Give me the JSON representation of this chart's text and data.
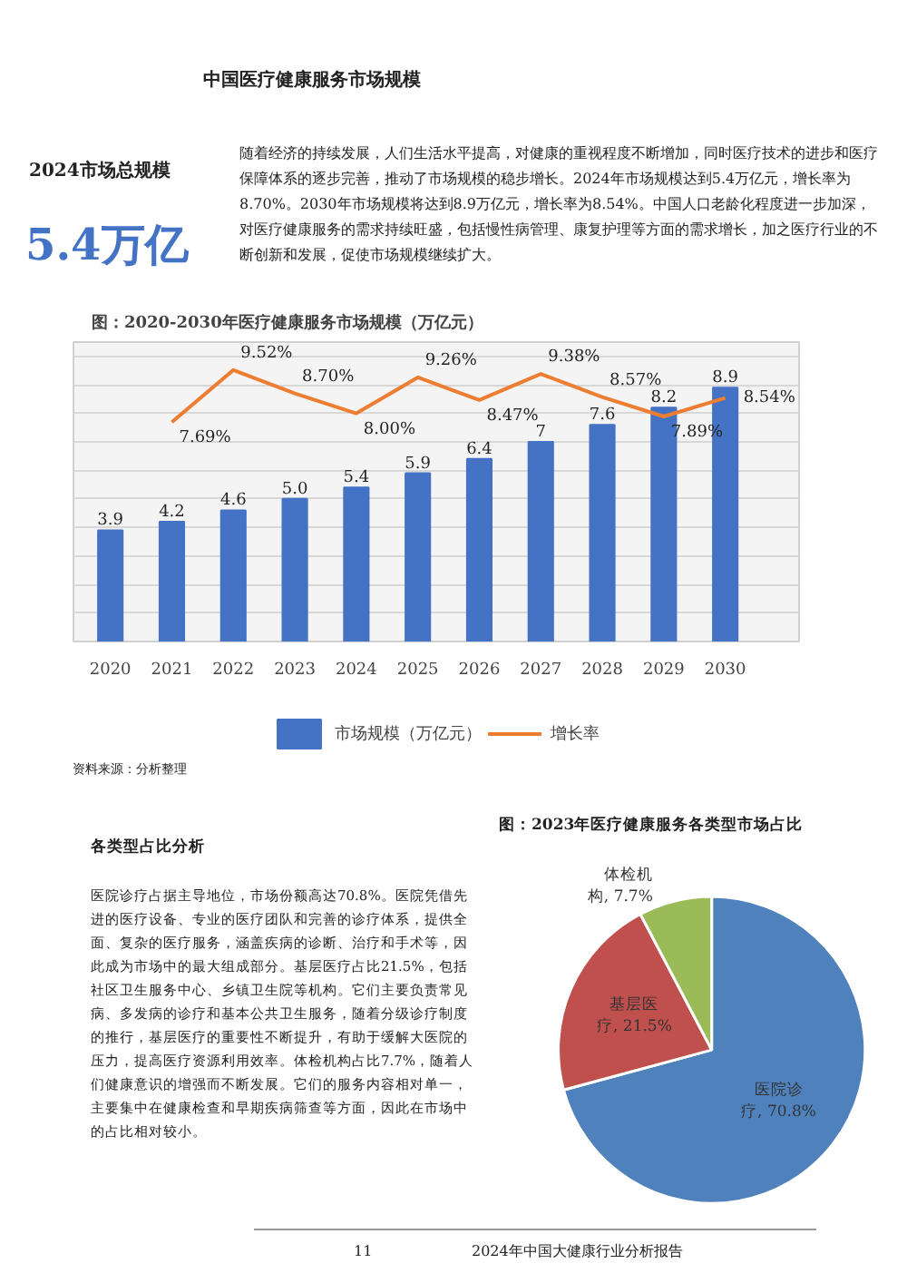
{
  "chart_data": [
    {
      "type": "other",
      "title": "中国医疗健康服务市场规模",
      "annotations": [
        "2024市场总规模",
        "5.4万亿",
        "随着经济的持续发展，人们生活水平提高，对健康的重视程度不断增加，同时医疗技术的进步和医疗保障体系的逐步完善，推动了市场规模的稳步增长。2024年市场规模达到5.4万亿元，增长率为8.70%。2030年市场规模将达到8.9万亿元，增长率为8.54%。中国人口老龄化程度进一步加深，对医疗健康服务的需求持续旺盛，包括慢性病管理、康复护理等方面的需求增长，加之医疗行业的不断创新和发展，促使市场规模继续扩大。"
      ]
    },
    {
      "type": "bar",
      "title": "图：2020-2030年医疗健康服务市场规模（万亿元）",
      "categories": [
        "2020",
        "2021",
        "2022",
        "2023",
        "2024",
        "2025",
        "2026",
        "2027",
        "2028",
        "2029",
        "2030"
      ],
      "series": [
        {
          "name": "市场规模（万亿元）",
          "type": "bar",
          "color": "#4472c4",
          "values": [
            3.9,
            4.2,
            4.6,
            5.0,
            5.4,
            5.9,
            6.4,
            7,
            7.6,
            8.2,
            8.9
          ],
          "value_labels": [
            "3.9",
            "4.2",
            "4.6",
            "5.0",
            "5.4",
            "5.9",
            "6.4",
            "7",
            "7.6",
            "8.2",
            "8.9"
          ]
        },
        {
          "name": "增长率",
          "type": "line",
          "color": "#ed7d31",
          "values": [
            null,
            7.69,
            9.52,
            8.7,
            8.0,
            9.26,
            8.47,
            9.38,
            8.57,
            7.89,
            8.54
          ],
          "value_labels": [
            null,
            "7.69%",
            "9.52%",
            "8.70%",
            "8.00%",
            "9.26%",
            "8.47%",
            "9.38%",
            "8.57%",
            "7.89%",
            "8.54%"
          ]
        }
      ],
      "ylim": [
        0,
        10.5
      ],
      "yticks": [
        {
          "value": 0,
          "label": null
        },
        {
          "value": 1,
          "label": null
        },
        {
          "value": 2,
          "label": null
        },
        {
          "value": 3,
          "label": null
        },
        {
          "value": 4,
          "label": null
        },
        {
          "value": 5,
          "label": null
        },
        {
          "value": 6,
          "label": null
        },
        {
          "value": 7,
          "label": null
        },
        {
          "value": 8,
          "label": null
        },
        {
          "value": 9,
          "label": null
        },
        {
          "value": 10,
          "label": null
        }
      ],
      "tick_labels": "x",
      "grid": "y",
      "legend": "bottom",
      "marker": "none",
      "line_style": "solid",
      "annotations": [
        "资料来源：分析整理"
      ]
    },
    {
      "type": "pie",
      "title": "图：2023年医疗健康服务各类型市场占比",
      "categories": [
        "医院诊疗",
        "基层医疗",
        "体检机构"
      ],
      "values": [
        70.8,
        21.5,
        7.7
      ],
      "colors": [
        "#4f81bd",
        "#c0504d",
        "#9bbb59"
      ],
      "value_labels": [
        "70.8%",
        "21.5%",
        "7.7%"
      ],
      "annotations": [
        "各类型占比分析",
        "医院诊疗占据主导地位，市场份额高达70.8%。医院凭借先进的医疗设备、专业的医疗团队和完善的诊疗体系，提供全面、复杂的医疗服务，涵盖疾病的诊断、治疗和手术等，因此成为市场中的最大组成部分。基层医疗占比21.5%，包括社区卫生服务中心、乡镇卫生院等机构。它们主要负责常见病、多发病的诊疗和基本公共卫生服务，随着分级诊疗制度的推行，基层医疗的重要性不断提升，有助于缓解大医院的压力，提高医疗资源利用效率。体检机构占比7.7%，随着人们健康意识的增强而不断发展。它们的服务内容相对单一，主要集中在健康检查和早期疾病筛查等方面，因此在市场中的占比相对较小。",
        "11",
        "2024年中国大健康行业分析报告"
      ]
    }
  ]
}
